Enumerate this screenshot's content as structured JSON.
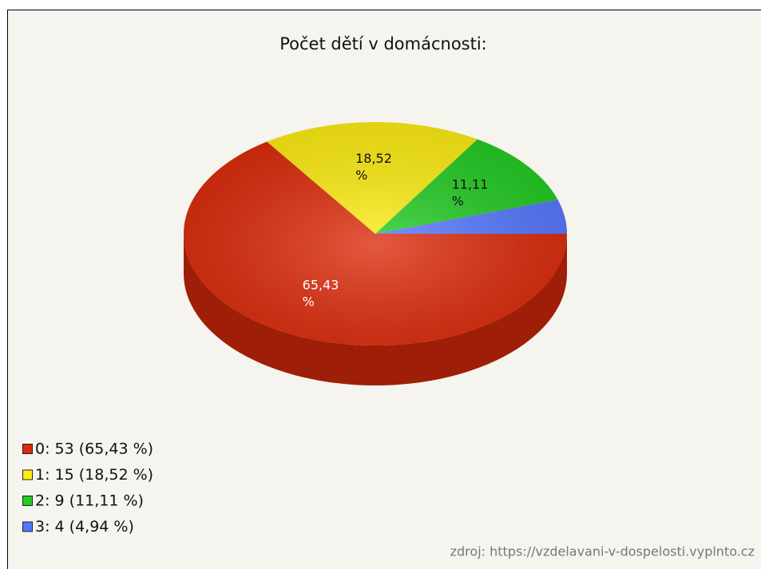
{
  "chart_data": {
    "type": "pie3d",
    "title": "Počet dětí v domácnosti:",
    "categories": [
      "0",
      "1",
      "2",
      "3"
    ],
    "counts": [
      53,
      15,
      9,
      4
    ],
    "values": [
      65.43,
      18.52,
      11.11,
      4.94
    ],
    "value_labels": [
      "65,43 %",
      "18,52 %",
      "11,11 %",
      null
    ],
    "legend_labels": [
      "0: 53 (65,43 %)",
      "1: 15 (18,52 %)",
      "2: 9 (11,11 %)",
      "3: 4 (4,94 %)"
    ],
    "colors": [
      "#dd2a0a",
      "#ffee11",
      "#22cc22",
      "#5577ff"
    ],
    "legend": "bottom-left",
    "source": "zdroj: https://vzdelavani-v-dospelosti.vyplnto.cz"
  }
}
